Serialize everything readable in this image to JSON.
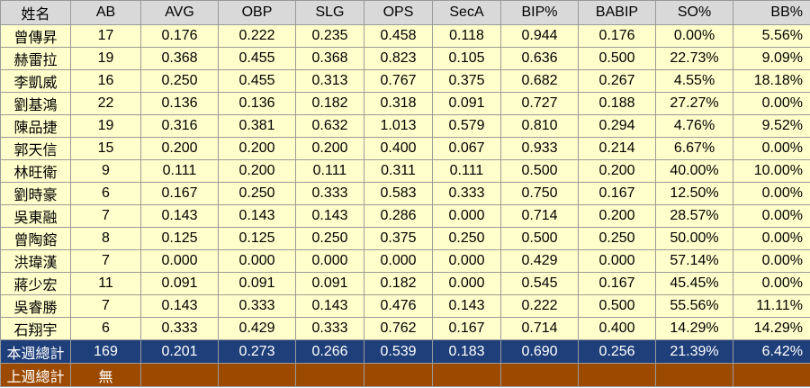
{
  "headers": [
    "姓名",
    "AB",
    "AVG",
    "OBP",
    "SLG",
    "OPS",
    "SecA",
    "BIP%",
    "BABIP",
    "SO%",
    "BB%"
  ],
  "rows": [
    [
      "曾傳昇",
      "17",
      "0.176",
      "0.222",
      "0.235",
      "0.458",
      "0.118",
      "0.944",
      "0.176",
      "0.00%",
      "5.56%"
    ],
    [
      "赫雷拉",
      "19",
      "0.368",
      "0.455",
      "0.368",
      "0.823",
      "0.105",
      "0.636",
      "0.500",
      "22.73%",
      "9.09%"
    ],
    [
      "李凱威",
      "16",
      "0.250",
      "0.455",
      "0.313",
      "0.767",
      "0.375",
      "0.682",
      "0.267",
      "4.55%",
      "18.18%"
    ],
    [
      "劉基鴻",
      "22",
      "0.136",
      "0.136",
      "0.182",
      "0.318",
      "0.091",
      "0.727",
      "0.188",
      "27.27%",
      "0.00%"
    ],
    [
      "陳品捷",
      "19",
      "0.316",
      "0.381",
      "0.632",
      "1.013",
      "0.579",
      "0.810",
      "0.294",
      "4.76%",
      "9.52%"
    ],
    [
      "郭天信",
      "15",
      "0.200",
      "0.200",
      "0.200",
      "0.400",
      "0.067",
      "0.933",
      "0.214",
      "6.67%",
      "0.00%"
    ],
    [
      "林旺衛",
      "9",
      "0.111",
      "0.200",
      "0.111",
      "0.311",
      "0.111",
      "0.500",
      "0.200",
      "40.00%",
      "10.00%"
    ],
    [
      "劉時豪",
      "6",
      "0.167",
      "0.250",
      "0.333",
      "0.583",
      "0.333",
      "0.750",
      "0.167",
      "12.50%",
      "0.00%"
    ],
    [
      "吳東融",
      "7",
      "0.143",
      "0.143",
      "0.143",
      "0.286",
      "0.000",
      "0.714",
      "0.200",
      "28.57%",
      "0.00%"
    ],
    [
      "曾陶鎔",
      "8",
      "0.125",
      "0.125",
      "0.250",
      "0.375",
      "0.250",
      "0.500",
      "0.250",
      "50.00%",
      "0.00%"
    ],
    [
      "洪瑋漢",
      "7",
      "0.000",
      "0.000",
      "0.000",
      "0.000",
      "0.000",
      "0.429",
      "0.000",
      "57.14%",
      "0.00%"
    ],
    [
      "蔣少宏",
      "11",
      "0.091",
      "0.091",
      "0.091",
      "0.182",
      "0.000",
      "0.545",
      "0.167",
      "45.45%",
      "0.00%"
    ],
    [
      "吳睿勝",
      "7",
      "0.143",
      "0.333",
      "0.143",
      "0.476",
      "0.143",
      "0.222",
      "0.500",
      "55.56%",
      "11.11%"
    ],
    [
      "石翔宇",
      "6",
      "0.333",
      "0.429",
      "0.333",
      "0.762",
      "0.167",
      "0.714",
      "0.400",
      "14.29%",
      "14.29%"
    ]
  ],
  "total": [
    "本週總計",
    "169",
    "0.201",
    "0.273",
    "0.266",
    "0.539",
    "0.183",
    "0.690",
    "0.256",
    "21.39%",
    "6.42%"
  ],
  "prev": [
    "上週總計",
    "無",
    "",
    "",
    "",
    "",
    "",
    "",
    "",
    "",
    ""
  ],
  "colors": {
    "header_bg": "#d9d9d9",
    "row_bg": "#ffffcc",
    "total_bg": "#1f3f7a",
    "prev_bg": "#9c4a00"
  }
}
